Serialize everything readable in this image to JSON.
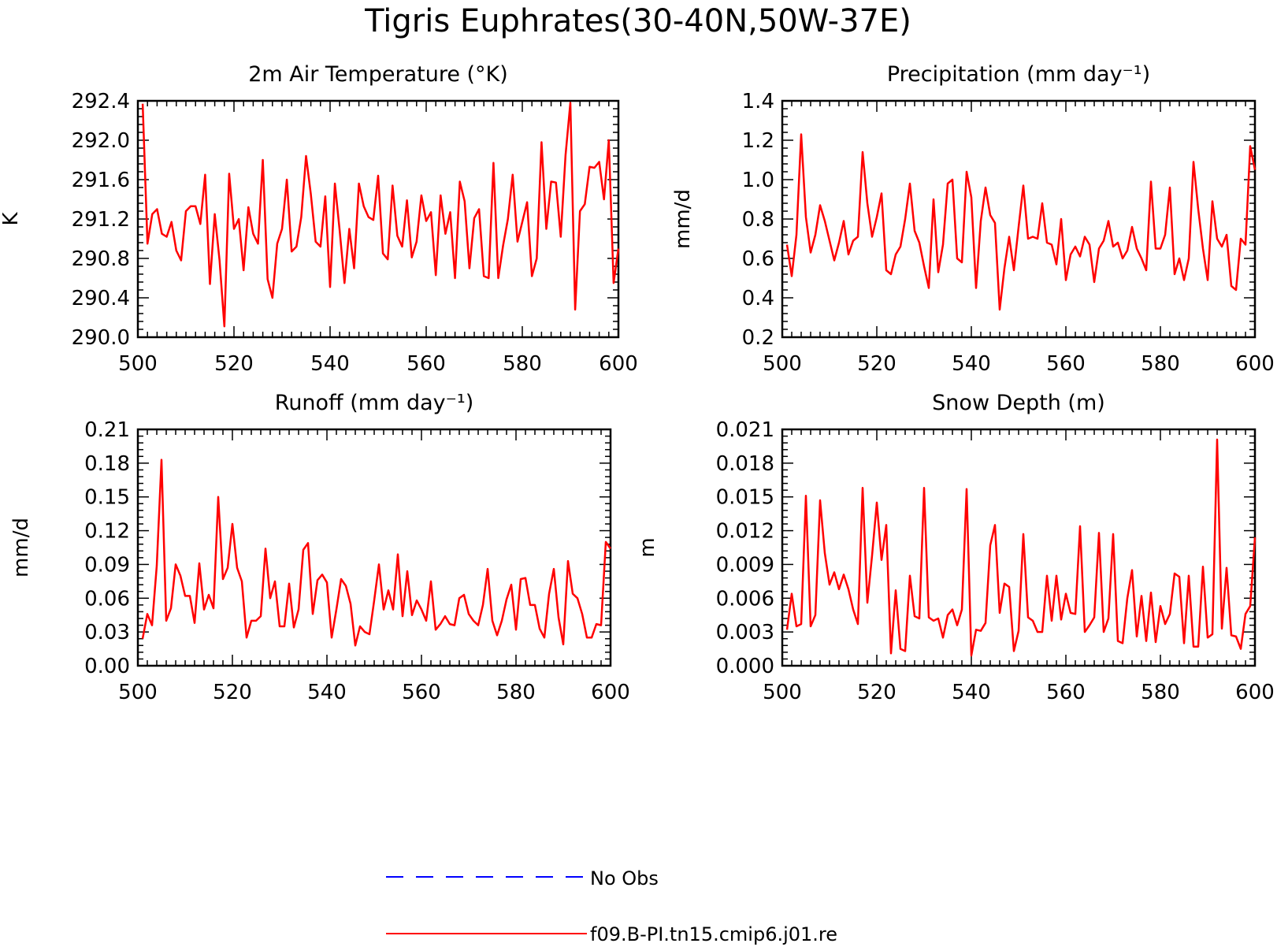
{
  "figure": {
    "title": "Tigris Euphrates(30-40N,50W-37E)"
  },
  "colors": {
    "model": "#ff0000",
    "obs": "#0000ff",
    "axis": "#000000"
  },
  "legend": {
    "placement": "bottom-center",
    "entries": [
      {
        "label": "No Obs",
        "style": "dashed",
        "color": "#0000ff"
      },
      {
        "label": "f09.B-PI.tn15.cmip6.j01.re",
        "style": "solid",
        "color": "#ff0000"
      }
    ]
  },
  "chart_data": [
    {
      "type": "line",
      "title": "2m Air Temperature (°K)",
      "xlabel": "",
      "ylabel": "K",
      "xlim": [
        500,
        600
      ],
      "ylim": [
        290.0,
        292.4
      ],
      "xticks": [
        500,
        520,
        540,
        560,
        580,
        600
      ],
      "yticks": [
        290.0,
        290.4,
        290.8,
        291.2,
        291.6,
        292.0,
        292.4
      ],
      "yticklabels": [
        "290.0",
        "290.4",
        "290.8",
        "291.2",
        "291.6",
        "292.0",
        "292.4"
      ],
      "grid": false,
      "x_start": 501,
      "series": [
        {
          "name": "f09.B-PI.tn15.cmip6.j01.re",
          "values": [
            292.37,
            290.95,
            291.25,
            291.3,
            291.05,
            291.02,
            291.17,
            290.88,
            290.78,
            291.28,
            291.33,
            291.33,
            291.15,
            291.65,
            290.54,
            291.25,
            290.78,
            290.11,
            291.66,
            291.1,
            291.2,
            290.68,
            291.32,
            291.05,
            290.95,
            291.8,
            290.59,
            290.4,
            290.95,
            291.1,
            291.6,
            290.87,
            290.92,
            291.22,
            291.84,
            291.45,
            290.97,
            290.92,
            291.43,
            290.51,
            291.56,
            291.08,
            290.55,
            291.1,
            290.7,
            291.56,
            291.33,
            291.22,
            291.19,
            291.64,
            290.85,
            290.79,
            291.54,
            291.03,
            290.92,
            291.39,
            290.81,
            290.97,
            291.44,
            291.18,
            291.27,
            290.63,
            291.44,
            291.05,
            291.27,
            290.6,
            291.58,
            291.38,
            290.7,
            291.21,
            291.3,
            290.62,
            290.6,
            291.77,
            290.6,
            290.93,
            291.2,
            291.65,
            290.97,
            291.17,
            291.37,
            290.62,
            290.8,
            291.98,
            291.1,
            291.58,
            291.57,
            291.02,
            291.85,
            292.38,
            290.28,
            291.28,
            291.35,
            291.73,
            291.72,
            291.78,
            291.4,
            292.0,
            290.55,
            290.9
          ]
        }
      ]
    },
    {
      "type": "line",
      "title": "Precipitation (mm day⁻¹)",
      "xlabel": "",
      "ylabel": "mm/d",
      "xlim": [
        500,
        600
      ],
      "ylim": [
        0.2,
        1.4
      ],
      "xticks": [
        500,
        520,
        540,
        560,
        580,
        600
      ],
      "yticks": [
        0.2,
        0.4,
        0.6,
        0.8,
        1.0,
        1.2,
        1.4
      ],
      "yticklabels": [
        "0.2",
        "0.4",
        "0.6",
        "0.8",
        "1.0",
        "1.2",
        "1.4"
      ],
      "grid": false,
      "x_start": 501,
      "series": [
        {
          "name": "f09.B-PI.tn15.cmip6.j01.re",
          "values": [
            0.67,
            0.51,
            0.72,
            1.23,
            0.81,
            0.63,
            0.72,
            0.87,
            0.79,
            0.69,
            0.59,
            0.68,
            0.79,
            0.62,
            0.69,
            0.71,
            1.14,
            0.88,
            0.71,
            0.81,
            0.93,
            0.54,
            0.52,
            0.62,
            0.66,
            0.8,
            0.98,
            0.74,
            0.68,
            0.56,
            0.45,
            0.9,
            0.53,
            0.67,
            0.98,
            1.0,
            0.6,
            0.58,
            1.04,
            0.91,
            0.45,
            0.79,
            0.96,
            0.82,
            0.78,
            0.34,
            0.55,
            0.71,
            0.54,
            0.76,
            0.97,
            0.7,
            0.71,
            0.7,
            0.88,
            0.68,
            0.67,
            0.57,
            0.8,
            0.49,
            0.62,
            0.66,
            0.61,
            0.71,
            0.67,
            0.48,
            0.65,
            0.69,
            0.79,
            0.66,
            0.68,
            0.6,
            0.64,
            0.76,
            0.65,
            0.6,
            0.54,
            0.99,
            0.65,
            0.65,
            0.72,
            0.96,
            0.52,
            0.6,
            0.49,
            0.6,
            1.09,
            0.85,
            0.65,
            0.49,
            0.89,
            0.7,
            0.66,
            0.72,
            0.46,
            0.44,
            0.7,
            0.67,
            1.17,
            1.05
          ]
        }
      ]
    },
    {
      "type": "line",
      "title": "Runoff (mm day⁻¹)",
      "xlabel": "",
      "ylabel": "mm/d",
      "xlim": [
        500,
        600
      ],
      "ylim": [
        0.0,
        0.21
      ],
      "xticks": [
        500,
        520,
        540,
        560,
        580,
        600
      ],
      "yticks": [
        0.0,
        0.03,
        0.06,
        0.09,
        0.12,
        0.15,
        0.18,
        0.21
      ],
      "yticklabels": [
        "0.00",
        "0.03",
        "0.06",
        "0.09",
        "0.12",
        "0.15",
        "0.18",
        "0.21"
      ],
      "grid": false,
      "x_start": 501,
      "series": [
        {
          "name": "f09.B-PI.tn15.cmip6.j01.re",
          "values": [
            0.024,
            0.046,
            0.036,
            0.089,
            0.183,
            0.04,
            0.051,
            0.09,
            0.08,
            0.062,
            0.062,
            0.038,
            0.091,
            0.05,
            0.063,
            0.051,
            0.15,
            0.077,
            0.087,
            0.126,
            0.087,
            0.075,
            0.025,
            0.04,
            0.04,
            0.044,
            0.104,
            0.06,
            0.075,
            0.035,
            0.035,
            0.073,
            0.034,
            0.05,
            0.103,
            0.109,
            0.046,
            0.076,
            0.081,
            0.074,
            0.025,
            0.05,
            0.077,
            0.071,
            0.055,
            0.018,
            0.035,
            0.03,
            0.028,
            0.058,
            0.09,
            0.05,
            0.067,
            0.05,
            0.099,
            0.044,
            0.084,
            0.045,
            0.058,
            0.05,
            0.04,
            0.075,
            0.032,
            0.037,
            0.044,
            0.037,
            0.036,
            0.06,
            0.063,
            0.046,
            0.04,
            0.036,
            0.054,
            0.086,
            0.04,
            0.027,
            0.04,
            0.059,
            0.072,
            0.032,
            0.077,
            0.078,
            0.054,
            0.054,
            0.033,
            0.025,
            0.064,
            0.086,
            0.043,
            0.019,
            0.093,
            0.064,
            0.06,
            0.046,
            0.025,
            0.025,
            0.037,
            0.036,
            0.11,
            0.104
          ]
        }
      ]
    },
    {
      "type": "line",
      "title": "Snow Depth (m)",
      "xlabel": "",
      "ylabel": "m",
      "xlim": [
        500,
        600
      ],
      "ylim": [
        0.0,
        0.021
      ],
      "xticks": [
        500,
        520,
        540,
        560,
        580,
        600
      ],
      "yticks": [
        0.0,
        0.003,
        0.006,
        0.009,
        0.012,
        0.015,
        0.018,
        0.021
      ],
      "yticklabels": [
        "0.000",
        "0.003",
        "0.006",
        "0.009",
        "0.012",
        "0.015",
        "0.018",
        "0.021"
      ],
      "grid": false,
      "x_start": 501,
      "series": [
        {
          "name": "f09.B-PI.tn15.cmip6.j01.re",
          "values": [
            0.0032,
            0.0064,
            0.0035,
            0.0037,
            0.0151,
            0.0035,
            0.0045,
            0.0147,
            0.01,
            0.0072,
            0.0083,
            0.0068,
            0.0081,
            0.0068,
            0.005,
            0.0037,
            0.0158,
            0.0056,
            0.0098,
            0.0145,
            0.0094,
            0.0125,
            0.0011,
            0.0067,
            0.0015,
            0.0013,
            0.008,
            0.0044,
            0.0042,
            0.0158,
            0.0043,
            0.004,
            0.0042,
            0.0025,
            0.0045,
            0.005,
            0.0036,
            0.005,
            0.0157,
            0.0009,
            0.0032,
            0.0031,
            0.0038,
            0.0107,
            0.0125,
            0.0047,
            0.0073,
            0.007,
            0.0013,
            0.0031,
            0.0117,
            0.0043,
            0.004,
            0.003,
            0.003,
            0.008,
            0.004,
            0.008,
            0.0041,
            0.0064,
            0.0047,
            0.0046,
            0.0124,
            0.003,
            0.0036,
            0.0043,
            0.0118,
            0.003,
            0.0042,
            0.0117,
            0.0022,
            0.002,
            0.006,
            0.0085,
            0.0026,
            0.0062,
            0.0022,
            0.0065,
            0.0021,
            0.0053,
            0.0037,
            0.0046,
            0.0082,
            0.0079,
            0.002,
            0.008,
            0.0017,
            0.0017,
            0.0088,
            0.0025,
            0.0028,
            0.0201,
            0.0033,
            0.0087,
            0.0027,
            0.0026,
            0.0015,
            0.0046,
            0.0053,
            0.0114
          ]
        }
      ]
    }
  ]
}
